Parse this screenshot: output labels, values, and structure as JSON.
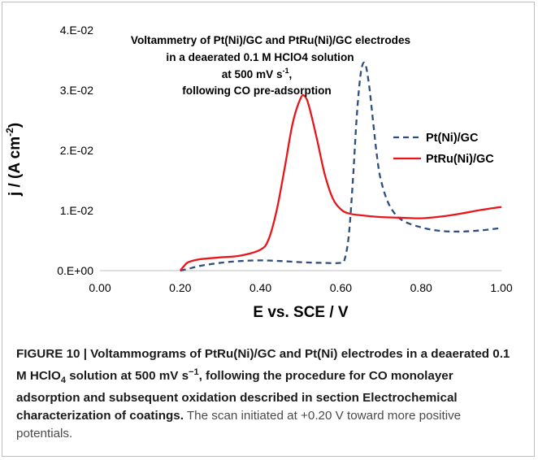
{
  "chart_data": {
    "type": "line",
    "title_lines": [
      "Voltammetry of Pt(Ni)/GC  and PtRu(Ni)/GC electrodes",
      "in a deaerated 0.1 M HClO4 solution",
      "at 500 mV s",
      "following CO pre-adsorption"
    ],
    "title_sup": "-1",
    "title_sup_suffix": ",",
    "xlabel": "E vs. SCE / V",
    "ylabel_main": "j / (A cm",
    "ylabel_sup": "-2",
    "ylabel_tail": ")",
    "xlim": [
      0,
      1
    ],
    "ylim": [
      0,
      0.04
    ],
    "xticks": [
      0,
      0.2,
      0.4,
      0.6,
      0.8,
      1.0
    ],
    "xtick_labels": [
      "0.00",
      "0.20",
      "0.40",
      "0.60",
      "0.80",
      "1.00"
    ],
    "yticks": [
      0,
      0.01,
      0.02,
      0.03,
      0.04
    ],
    "ytick_labels": [
      "0.E+00",
      "1.E-02",
      "2.E-02",
      "3.E-02",
      "4.E-02"
    ],
    "grid": false,
    "legend_position": "right",
    "series": [
      {
        "name": "Pt(Ni)/GC",
        "color": "#2e4e7e",
        "dash": "dashed",
        "x": [
          0.2,
          0.22,
          0.25,
          0.3,
          0.35,
          0.4,
          0.45,
          0.5,
          0.55,
          0.6,
          0.61,
          0.62,
          0.63,
          0.64,
          0.65,
          0.66,
          0.67,
          0.68,
          0.69,
          0.7,
          0.72,
          0.75,
          0.8,
          0.85,
          0.9,
          0.95,
          1.0
        ],
        "y": [
          0.0,
          0.0003,
          0.0008,
          0.0013,
          0.0016,
          0.0017,
          0.0016,
          0.0014,
          0.0013,
          0.0013,
          0.002,
          0.006,
          0.015,
          0.026,
          0.033,
          0.0345,
          0.031,
          0.025,
          0.019,
          0.015,
          0.011,
          0.0085,
          0.0072,
          0.0066,
          0.0065,
          0.0067,
          0.0071
        ]
      },
      {
        "name": "PtRu(Ni)/GC",
        "color": "#e8161b",
        "dash": "solid",
        "x": [
          0.2,
          0.21,
          0.22,
          0.25,
          0.3,
          0.35,
          0.4,
          0.42,
          0.44,
          0.46,
          0.48,
          0.5,
          0.51,
          0.52,
          0.54,
          0.56,
          0.58,
          0.6,
          0.62,
          0.65,
          0.7,
          0.75,
          0.8,
          0.85,
          0.9,
          0.95,
          1.0
        ],
        "y": [
          0.0,
          0.0008,
          0.0014,
          0.0019,
          0.0022,
          0.0025,
          0.0035,
          0.0052,
          0.01,
          0.017,
          0.0245,
          0.0287,
          0.029,
          0.0275,
          0.022,
          0.016,
          0.012,
          0.0102,
          0.0095,
          0.0092,
          0.0089,
          0.0088,
          0.0087,
          0.009,
          0.0095,
          0.0101,
          0.0106
        ]
      }
    ]
  },
  "caption": {
    "bold_1": "FIGURE 10 | Voltammograms of PtRu(Ni)/GC and Pt(Ni) electrodes in a deaerated 0.1 M HClO",
    "sub_4": "4",
    "bold_2": " solution at 500 mV s",
    "sup_minus1": "−1",
    "bold_3": ", following the procedure for CO monolayer adsorption and subsequent oxidation described in section Electrochemical characterization of coatings.",
    "rest": " The scan initiated at +0.20 V toward more positive potentials."
  }
}
